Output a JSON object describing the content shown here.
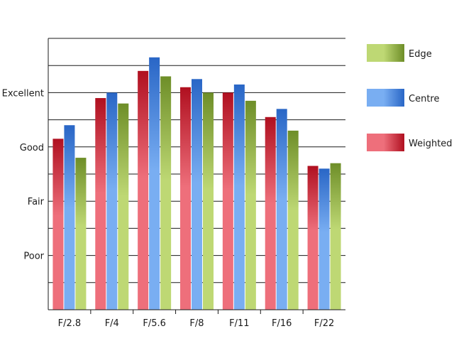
{
  "chart_data": {
    "type": "bar",
    "title": "",
    "xlabel": "",
    "ylabel": "",
    "categories": [
      "F/2.8",
      "F/4",
      "F/5.6",
      "F/8",
      "F/11",
      "F/16",
      "F/22"
    ],
    "series": [
      {
        "name": "Weighted",
        "color_light": "#ee6f7b",
        "color_dark": "#b01020",
        "values": [
          6.3,
          7.8,
          8.8,
          8.2,
          8.0,
          7.1,
          5.3
        ]
      },
      {
        "name": "Centre",
        "color_light": "#79aef2",
        "color_dark": "#2966c6",
        "values": [
          6.8,
          8.0,
          9.3,
          8.5,
          8.3,
          7.4,
          5.2
        ]
      },
      {
        "name": "Edge",
        "color_light": "#bed874",
        "color_dark": "#6e8e28",
        "values": [
          5.6,
          7.6,
          8.6,
          8.0,
          7.7,
          6.6,
          5.4
        ]
      }
    ],
    "ylim": [
      0,
      10
    ],
    "yticks": [
      {
        "value": 2,
        "label": "Poor"
      },
      {
        "value": 4,
        "label": "Fair"
      },
      {
        "value": 6,
        "label": "Good"
      },
      {
        "value": 8,
        "label": "Excellent"
      }
    ],
    "grid": true,
    "legend": {
      "placement": "right",
      "order": [
        "Edge",
        "Centre",
        "Weighted"
      ]
    }
  }
}
